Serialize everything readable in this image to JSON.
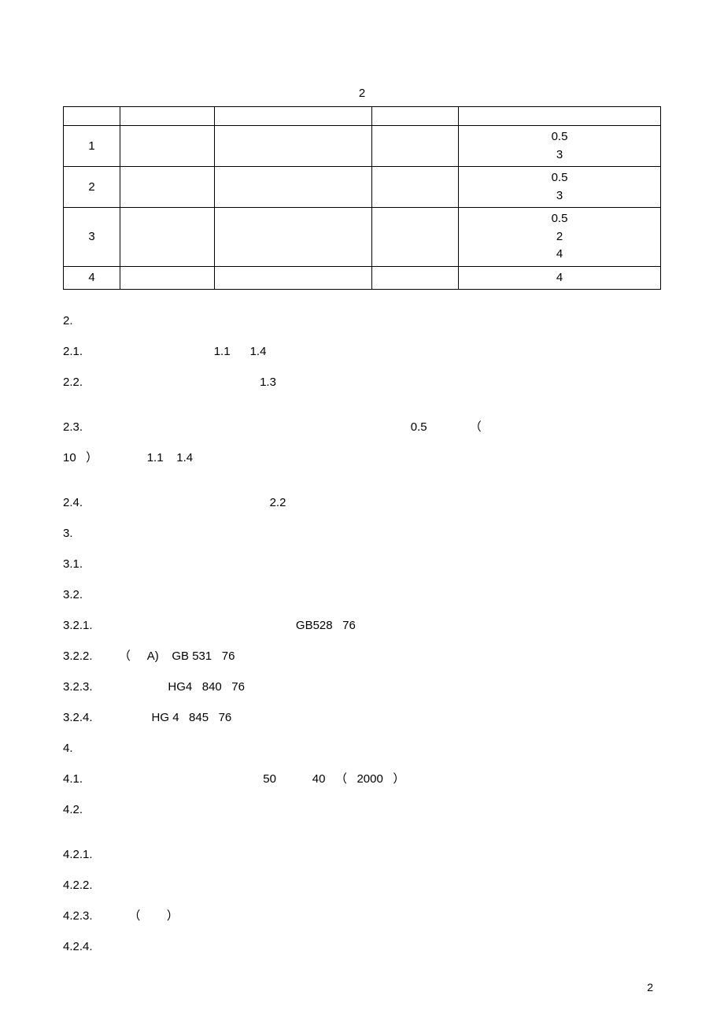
{
  "tableCaption": "2",
  "table": {
    "header": [
      "",
      "",
      "",
      "",
      ""
    ],
    "rows": [
      {
        "seq": "1",
        "c2": "",
        "c3": "",
        "c4": "",
        "c5": "0.5\n3"
      },
      {
        "seq": "2",
        "c2": "",
        "c3": "",
        "c4": "",
        "c5": "0.5\n3"
      },
      {
        "seq": "3",
        "c2": "",
        "c3": "",
        "c4": "",
        "c5": "0.5\n2\n4"
      },
      {
        "seq": "4",
        "c2": "",
        "c3": "",
        "c4": "",
        "c5": "4"
      }
    ]
  },
  "lines": [
    "2.",
    "2.1.                                        1.1      1.4",
    "2.2.                                                      1.3",
    "",
    "2.3.                                                                                                    0.5             （",
    "10   ）               1.1    1.4",
    "",
    "2.4.                                                         2.2",
    "3.",
    "3.1.",
    "3.2.",
    "3.2.1.                                                              GB528   76",
    "3.2.2.        （     A)    GB 531   76",
    "3.2.3.                       HG4   840   76",
    "3.2.4.                  HG 4   845   76",
    "4.",
    "4.1.                                                       50           40   （   2000   ）",
    "4.2.",
    "",
    "4.2.1.",
    "4.2.2.",
    "4.2.3.           （        ）",
    "4.2.4."
  ],
  "pageNumber": "2"
}
